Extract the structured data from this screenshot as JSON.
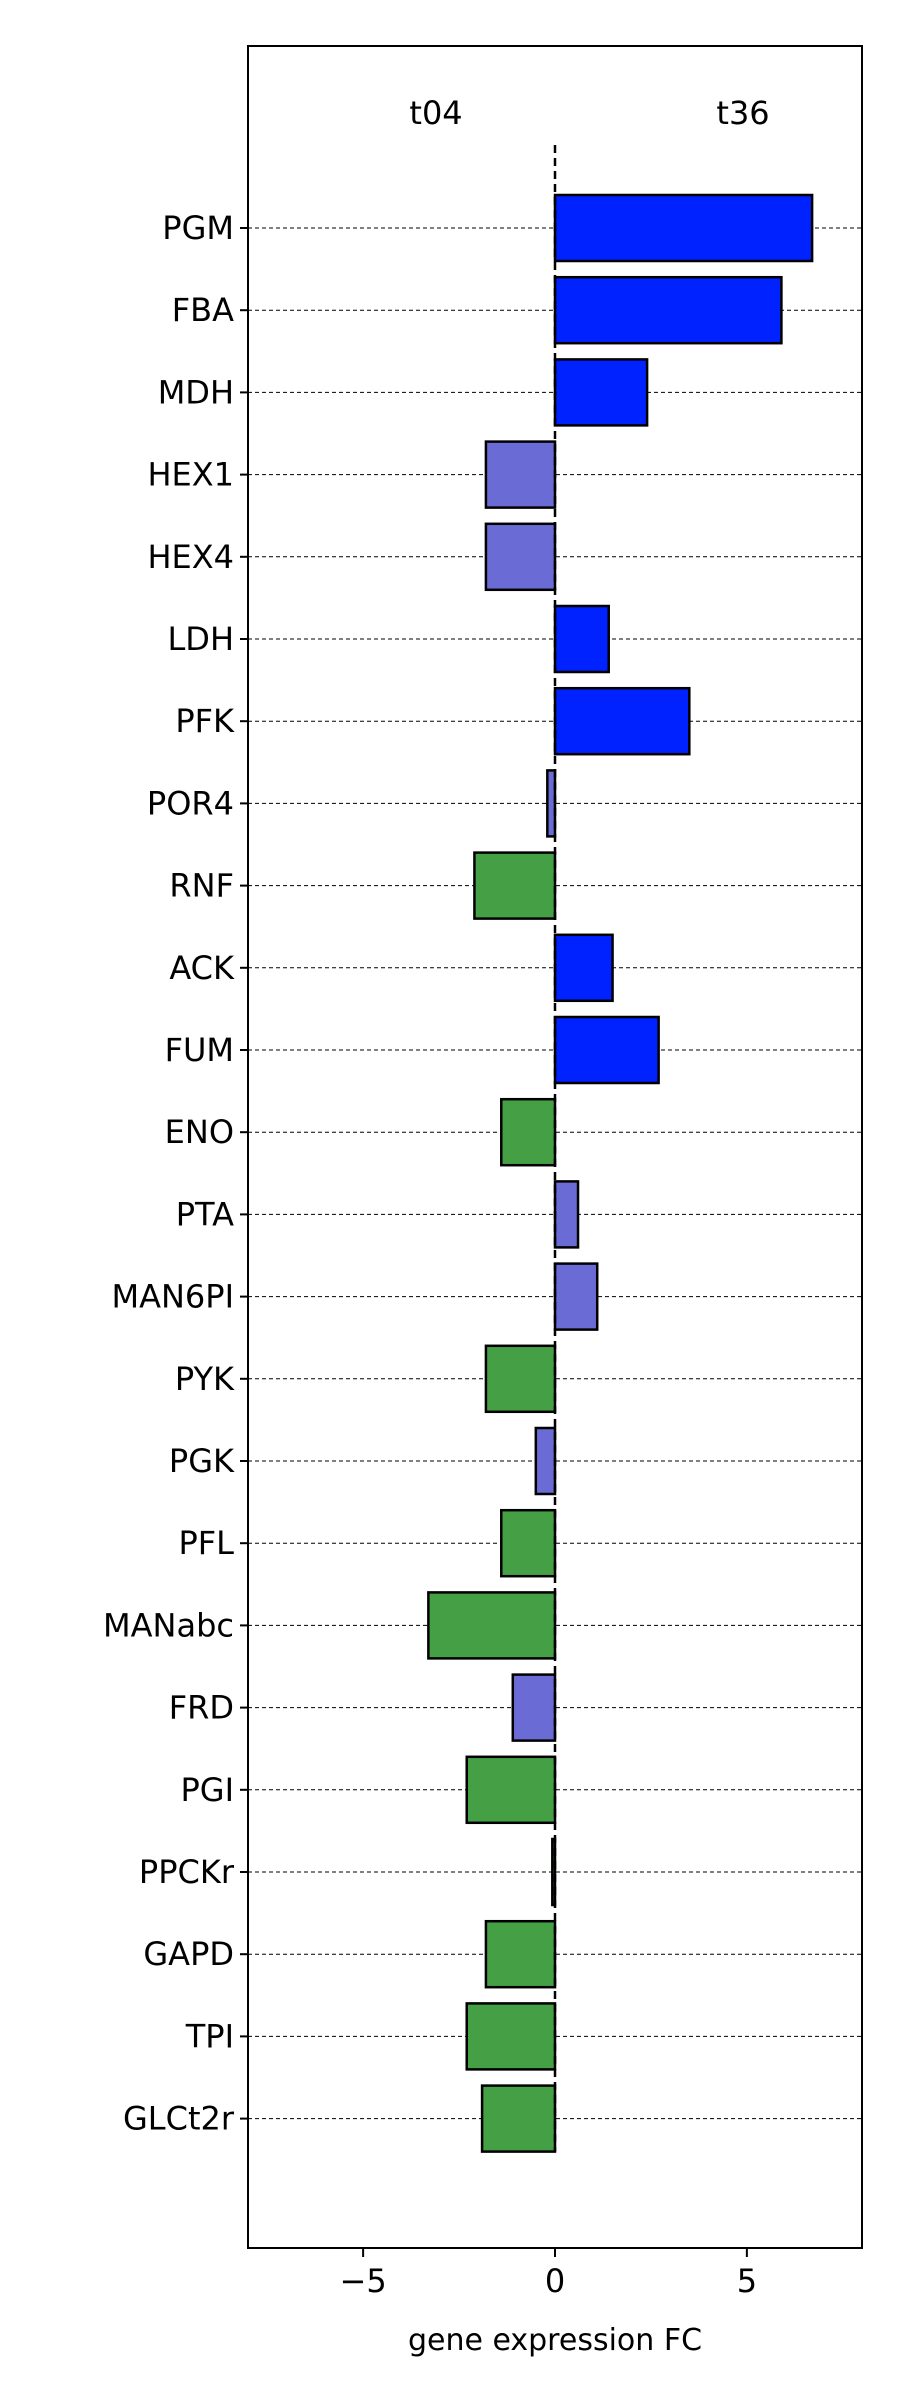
{
  "chart_data": {
    "type": "bar",
    "orientation": "horizontal",
    "categories": [
      "PGM",
      "FBA",
      "MDH",
      "HEX1",
      "HEX4",
      "LDH",
      "PFK",
      "POR4",
      "RNF",
      "ACK",
      "FUM",
      "ENO",
      "PTA",
      "MAN6PI",
      "PYK",
      "PGK",
      "PFL",
      "MANabc",
      "FRD",
      "PGI",
      "PPCKr",
      "GAPD",
      "TPI",
      "GLCt2r"
    ],
    "values": [
      6.7,
      5.9,
      2.4,
      -1.8,
      -1.8,
      1.4,
      3.5,
      -0.2,
      -2.1,
      1.5,
      2.7,
      -1.4,
      0.6,
      1.1,
      -1.8,
      -0.5,
      -1.4,
      -3.3,
      -1.1,
      -2.3,
      -0.07,
      -1.8,
      -2.3,
      -1.9
    ],
    "colors": [
      "#0022ff",
      "#0022ff",
      "#0022ff",
      "#6b6bd6",
      "#6b6bd6",
      "#0022ff",
      "#0022ff",
      "#6b6bd6",
      "#45a045",
      "#0022ff",
      "#0022ff",
      "#45a045",
      "#6b6bd6",
      "#6b6bd6",
      "#45a045",
      "#6b6bd6",
      "#45a045",
      "#45a045",
      "#6b6bd6",
      "#45a045",
      "#45a045",
      "#45a045",
      "#45a045",
      "#45a045"
    ],
    "xlabel": "gene expression FC",
    "ylabel": "",
    "title": "",
    "xlim": [
      -8,
      8
    ],
    "xticks": [
      -5,
      0,
      5
    ],
    "xtick_labels": [
      "−5",
      "0",
      "5"
    ],
    "annotations": [
      {
        "text": "t04",
        "x": -3.1
      },
      {
        "text": "t36",
        "x": 4.9
      }
    ],
    "grid": "horizontal dashed lines at each category",
    "zero_line": "vertical dashed line at x=0"
  }
}
